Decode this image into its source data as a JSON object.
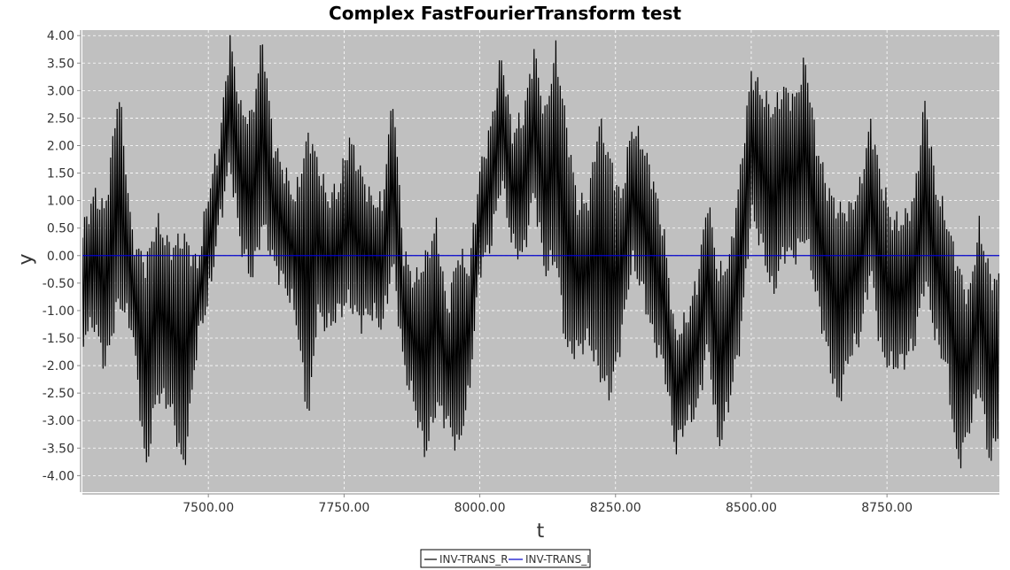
{
  "chart_data": {
    "type": "line",
    "title": "Complex FastFourierTransform test",
    "xlabel": "t",
    "ylabel": "y",
    "xlim": [
      7268,
      8957
    ],
    "ylim": [
      -4.3,
      4.1
    ],
    "x_ticks": [
      "7500.00",
      "7750.00",
      "8000.00",
      "8250.00",
      "8500.00",
      "8750.00"
    ],
    "x_tick_values": [
      7500,
      7750,
      8000,
      8250,
      8500,
      8750
    ],
    "y_ticks": [
      "4.00",
      "3.50",
      "3.00",
      "2.50",
      "2.00",
      "1.50",
      "1.00",
      "0.50",
      "0.00",
      "-0.50",
      "-1.00",
      "-1.50",
      "-2.00",
      "-2.50",
      "-3.00",
      "-3.50",
      "-4.00"
    ],
    "y_tick_values": [
      4,
      3.5,
      3,
      2.5,
      2,
      1.5,
      1,
      0.5,
      0,
      -0.5,
      -1,
      -1.5,
      -2,
      -2.5,
      -3,
      -3.5,
      -4
    ],
    "grid": true,
    "legend_position": "bottom-center",
    "series": [
      {
        "name": "INV-TRANS_R",
        "color": "#000000",
        "sample_step": 4,
        "envelope_x": [
          7268,
          7290,
          7310,
          7335,
          7360,
          7385,
          7405,
          7430,
          7455,
          7480,
          7500,
          7520,
          7540,
          7560,
          7580,
          7600,
          7620,
          7640,
          7660,
          7685,
          7700,
          7720,
          7740,
          7760,
          7780,
          7800,
          7820,
          7840,
          7860,
          7880,
          7900,
          7920,
          7940,
          7960,
          7980,
          8000,
          8020,
          8040,
          8060,
          8080,
          8100,
          8120,
          8140,
          8160,
          8180,
          8200,
          8220,
          8240,
          8260,
          8280,
          8300,
          8320,
          8340,
          8360,
          8380,
          8400,
          8420,
          8440,
          8460,
          8480,
          8500,
          8520,
          8540,
          8560,
          8580,
          8600,
          8620,
          8640,
          8660,
          8680,
          8700,
          8720,
          8740,
          8760,
          8780,
          8800,
          8820,
          8840,
          8860,
          8880,
          8900,
          8920,
          8940,
          8957
        ],
        "envelope_hi": [
          0.4,
          1.1,
          0.8,
          3.0,
          0.3,
          -0.2,
          0.6,
          0.1,
          0.3,
          -0.2,
          1.1,
          2.0,
          3.9,
          2.6,
          2.5,
          3.9,
          2.0,
          1.5,
          1.0,
          2.2,
          1.7,
          1.0,
          1.2,
          2.1,
          1.5,
          1.0,
          0.9,
          2.9,
          0.0,
          -0.5,
          -0.1,
          0.5,
          -1.0,
          0.0,
          -0.3,
          1.5,
          2.3,
          3.6,
          2.2,
          2.5,
          3.7,
          2.5,
          3.7,
          2.3,
          0.9,
          1.0,
          2.4,
          1.7,
          1.0,
          2.3,
          2.0,
          1.3,
          0.3,
          -1.5,
          -1.2,
          -0.5,
          1.0,
          -0.4,
          -0.1,
          1.5,
          3.3,
          2.9,
          2.6,
          3.0,
          2.8,
          3.5,
          2.0,
          1.2,
          0.8,
          0.8,
          1.2,
          2.4,
          1.3,
          0.6,
          0.6,
          1.0,
          2.8,
          1.2,
          0.6,
          -0.2,
          -0.8,
          0.5,
          -0.4,
          -0.5
        ],
        "envelope_lo": [
          -1.5,
          -1.2,
          -2.0,
          -0.8,
          -1.3,
          -3.9,
          -2.5,
          -2.7,
          -3.9,
          -1.5,
          -0.8,
          0.6,
          1.7,
          0.2,
          -0.4,
          0.6,
          -0.1,
          -0.5,
          -1.0,
          -3.0,
          -1.0,
          -1.3,
          -1.0,
          -0.8,
          -1.2,
          -1.0,
          -1.3,
          -0.1,
          -2.0,
          -2.7,
          -3.6,
          -2.7,
          -3.0,
          -3.5,
          -2.5,
          -0.2,
          0.2,
          1.4,
          0.2,
          0.0,
          1.2,
          -0.3,
          0.0,
          -1.7,
          -1.7,
          -1.5,
          -2.1,
          -2.5,
          -1.5,
          -0.1,
          -0.6,
          -1.5,
          -2.0,
          -3.5,
          -3.0,
          -2.8,
          -1.6,
          -3.5,
          -2.6,
          -1.5,
          0.8,
          0.2,
          -0.7,
          0.1,
          0.0,
          0.4,
          -0.7,
          -1.7,
          -2.7,
          -1.8,
          -1.5,
          -0.2,
          -1.8,
          -2.0,
          -1.9,
          -1.6,
          -0.4,
          -1.5,
          -2.0,
          -3.8,
          -3.2,
          -2.3,
          -3.8,
          -3.0
        ]
      },
      {
        "name": "INV-TRANS_I",
        "color": "#0000cc",
        "constant_value": 0.0
      }
    ]
  }
}
